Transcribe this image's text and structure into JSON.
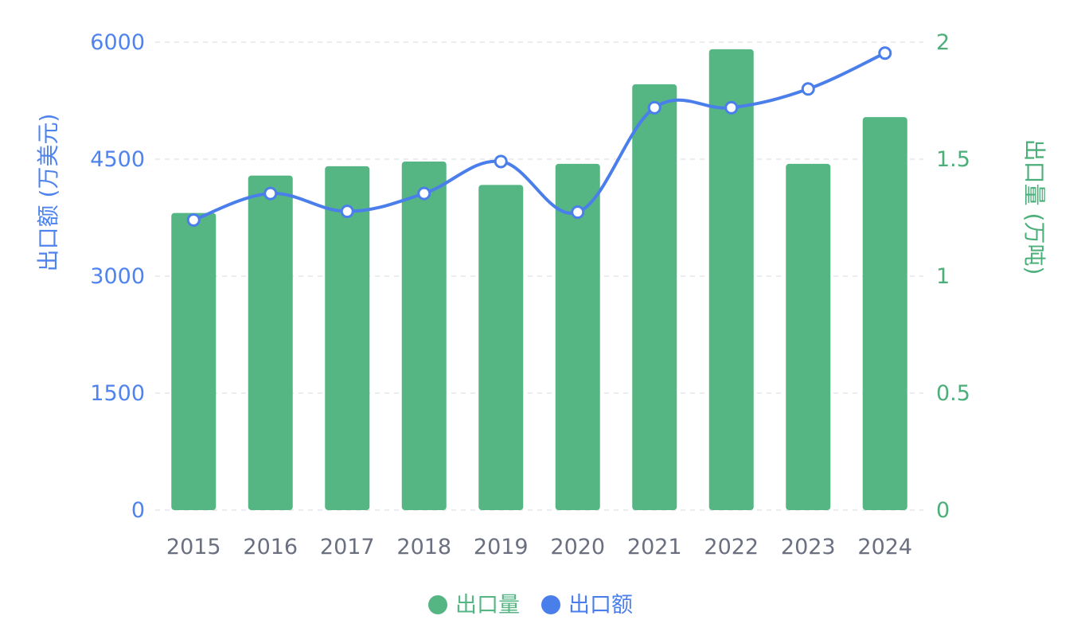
{
  "chart_data": {
    "type": "bar",
    "categories": [
      "2015",
      "2016",
      "2017",
      "2018",
      "2019",
      "2020",
      "2021",
      "2022",
      "2023",
      "2024"
    ],
    "series": [
      {
        "name": "出口量",
        "type": "bar",
        "axis": "right",
        "values": [
          1.27,
          1.43,
          1.47,
          1.49,
          1.39,
          1.48,
          1.82,
          1.97,
          1.48,
          1.68
        ]
      },
      {
        "name": "出口额",
        "type": "line",
        "axis": "left",
        "values": [
          3720,
          4060,
          3830,
          4060,
          4470,
          3820,
          5160,
          5160,
          5400,
          5860
        ]
      }
    ],
    "y_left": {
      "label": "出口额 (万美元)",
      "ticks": [
        "0",
        "1500",
        "3000",
        "4500",
        "6000"
      ],
      "range": [
        0,
        6000
      ]
    },
    "y_right": {
      "label": "出口量 (万吨)",
      "ticks": [
        "0",
        "0.5",
        "1",
        "1.5",
        "2"
      ],
      "range": [
        0,
        2
      ]
    },
    "grid": true,
    "legend_position": "bottom-center",
    "colors": {
      "bar": "#55B684",
      "line": "#4A7EEB",
      "left_axis": "#4F83EE",
      "right_axis": "#4CAF7A",
      "x_ticks": "#6B7080",
      "grid": "#E3E6EC"
    }
  }
}
